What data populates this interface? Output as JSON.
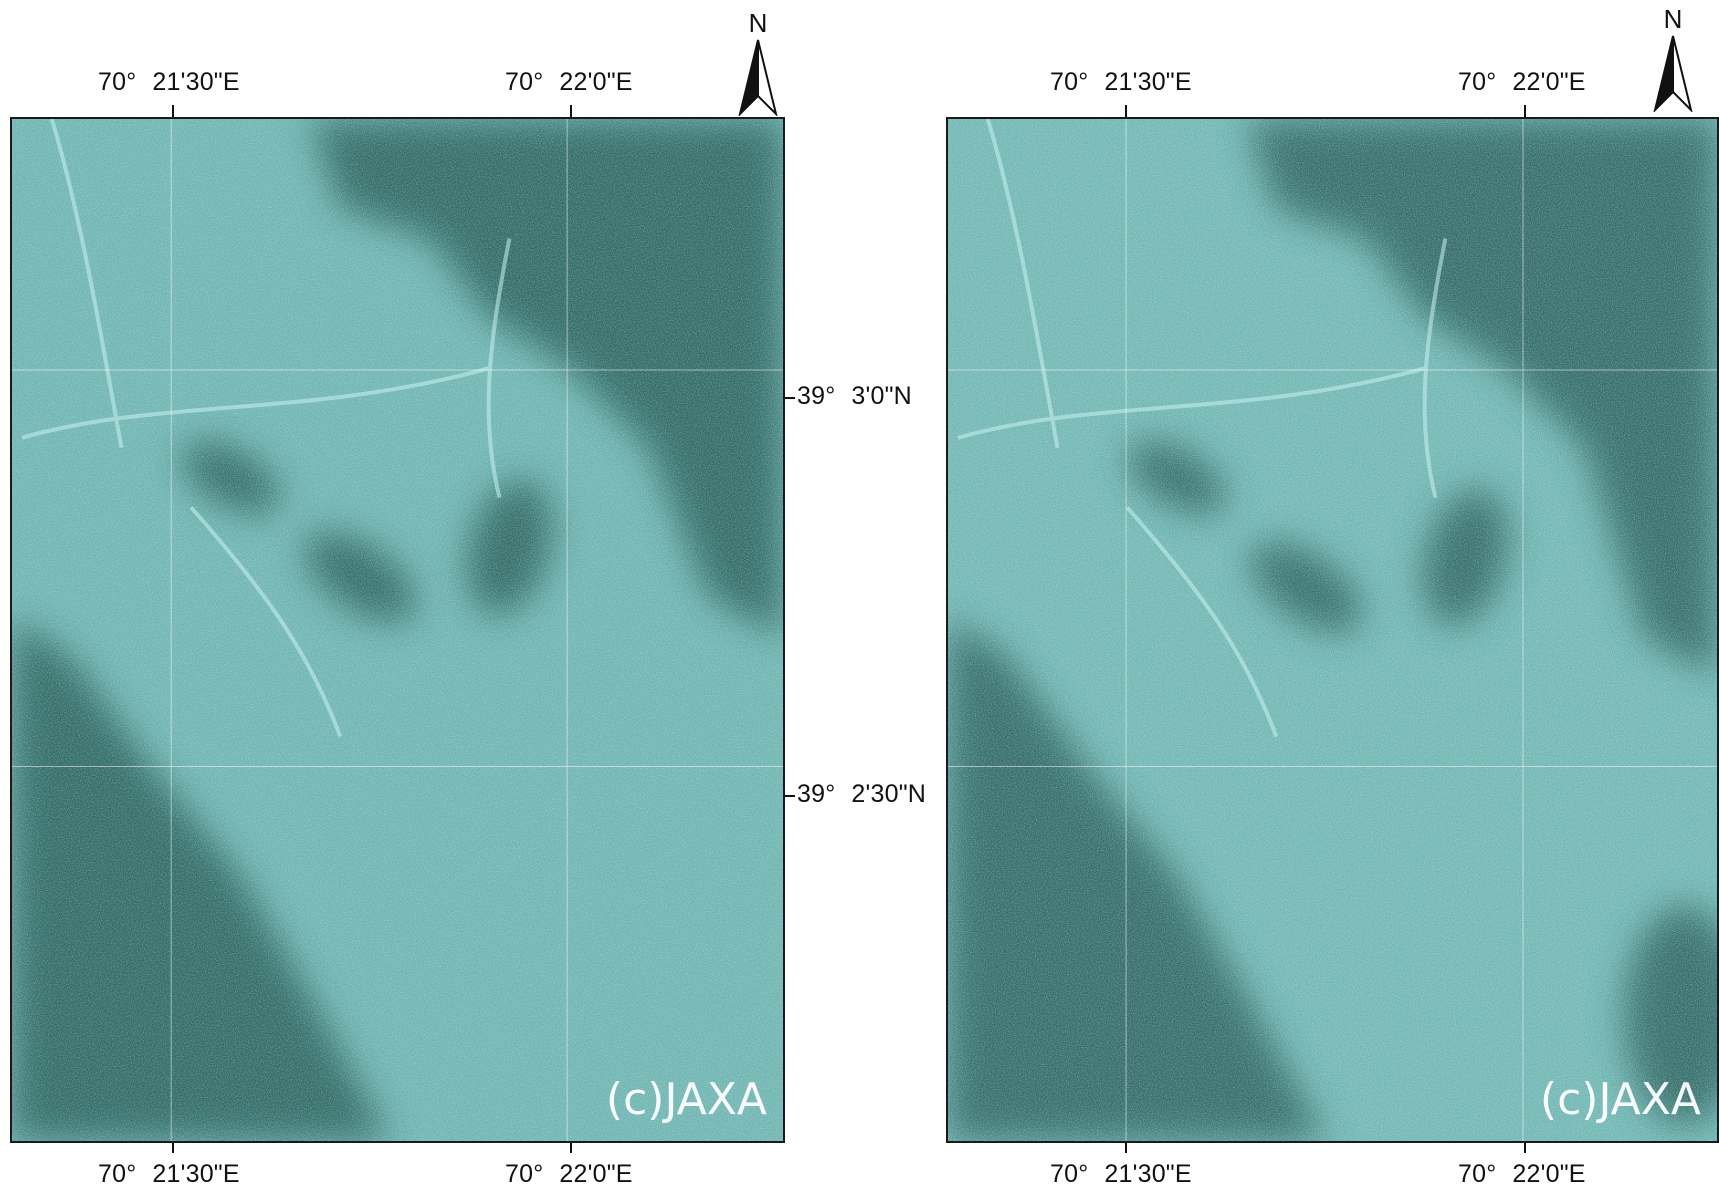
{
  "panels": [
    {
      "id": "left",
      "top_labels": [
        {
          "deg": "70°",
          "min": "21'30\"E"
        },
        {
          "deg": "70°",
          "min": "22'0\"E"
        }
      ],
      "bottom_labels": [
        {
          "deg": "70°",
          "min": "21'30\"E"
        },
        {
          "deg": "70°",
          "min": "22'0\"E"
        }
      ],
      "right_labels": [
        {
          "deg": "39°",
          "min": "3'0\"N"
        },
        {
          "deg": "39°",
          "min": "2'30\"N"
        }
      ],
      "north_label": "N",
      "credit": "(c)JAXA"
    },
    {
      "id": "right",
      "top_labels": [
        {
          "deg": "70°",
          "min": "21'30\"E"
        },
        {
          "deg": "70°",
          "min": "22'0\"E"
        }
      ],
      "bottom_labels": [
        {
          "deg": "70°",
          "min": "21'30\"E"
        },
        {
          "deg": "70°",
          "min": "22'0\"E"
        }
      ],
      "north_label": "N",
      "credit": "(c)JAXA"
    }
  ],
  "colors": {
    "imagery_base": "#4f8f8c",
    "imagery_bright": "#8fd6d4",
    "imagery_dark": "#2e6461",
    "urban_pink": "#e79a9a",
    "frame": "#1a1a1a"
  }
}
